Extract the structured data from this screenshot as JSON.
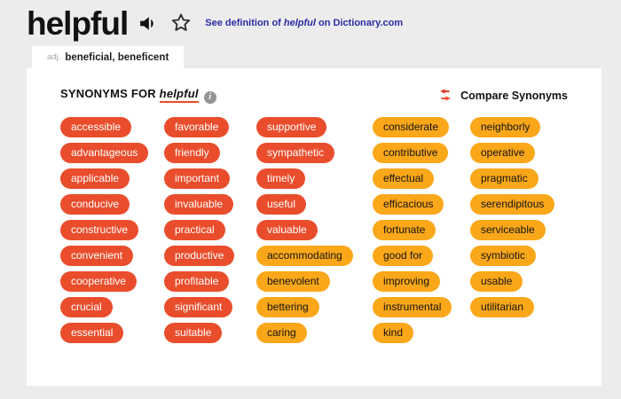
{
  "colors": {
    "strong_pill": "#E94D2C",
    "weak_pill": "#FAA71A",
    "link_blue": "#2B2BA6",
    "page_bg": "#ECECEC",
    "panel_bg": "#FFFFFF"
  },
  "icons": {
    "audio": "speaker-icon",
    "favorite": "star-icon",
    "info": "info-icon",
    "compare": "swap-arrows-icon"
  },
  "header": {
    "title": "helpful",
    "link": {
      "prefix": "See definition of ",
      "word": "helpful",
      "suffix": " on Dictionary.com"
    }
  },
  "tab": {
    "part_of_speech": "adj.",
    "label": "beneficial, beneficent"
  },
  "synonyms_section": {
    "heading_prefix": "SYNONYMS FOR ",
    "heading_word": "helpful",
    "info_glyph": "i",
    "compare_label": "Compare Synonyms"
  },
  "synonyms": {
    "columns": [
      {
        "items": [
          {
            "label": "accessible",
            "tone": "strong"
          },
          {
            "label": "advantageous",
            "tone": "strong"
          },
          {
            "label": "applicable",
            "tone": "strong"
          },
          {
            "label": "conducive",
            "tone": "strong"
          },
          {
            "label": "constructive",
            "tone": "strong"
          },
          {
            "label": "convenient",
            "tone": "strong"
          },
          {
            "label": "cooperative",
            "tone": "strong"
          },
          {
            "label": "crucial",
            "tone": "strong"
          },
          {
            "label": "essential",
            "tone": "strong"
          }
        ]
      },
      {
        "items": [
          {
            "label": "favorable",
            "tone": "strong"
          },
          {
            "label": "friendly",
            "tone": "strong"
          },
          {
            "label": "important",
            "tone": "strong"
          },
          {
            "label": "invaluable",
            "tone": "strong"
          },
          {
            "label": "practical",
            "tone": "strong"
          },
          {
            "label": "productive",
            "tone": "strong"
          },
          {
            "label": "profitable",
            "tone": "strong"
          },
          {
            "label": "significant",
            "tone": "strong"
          },
          {
            "label": "suitable",
            "tone": "strong"
          }
        ]
      },
      {
        "items": [
          {
            "label": "supportive",
            "tone": "strong"
          },
          {
            "label": "sympathetic",
            "tone": "strong"
          },
          {
            "label": "timely",
            "tone": "strong"
          },
          {
            "label": "useful",
            "tone": "strong"
          },
          {
            "label": "valuable",
            "tone": "strong"
          },
          {
            "label": "accommodating",
            "tone": "weak"
          },
          {
            "label": "benevolent",
            "tone": "weak"
          },
          {
            "label": "bettering",
            "tone": "weak"
          },
          {
            "label": "caring",
            "tone": "weak"
          }
        ]
      },
      {
        "items": [
          {
            "label": "considerate",
            "tone": "weak"
          },
          {
            "label": "contributive",
            "tone": "weak"
          },
          {
            "label": "effectual",
            "tone": "weak"
          },
          {
            "label": "efficacious",
            "tone": "weak"
          },
          {
            "label": "fortunate",
            "tone": "weak"
          },
          {
            "label": "good for",
            "tone": "weak"
          },
          {
            "label": "improving",
            "tone": "weak"
          },
          {
            "label": "instrumental",
            "tone": "weak"
          },
          {
            "label": "kind",
            "tone": "weak"
          }
        ]
      },
      {
        "items": [
          {
            "label": "neighborly",
            "tone": "weak"
          },
          {
            "label": "operative",
            "tone": "weak"
          },
          {
            "label": "pragmatic",
            "tone": "weak"
          },
          {
            "label": "serendipitous",
            "tone": "weak"
          },
          {
            "label": "serviceable",
            "tone": "weak"
          },
          {
            "label": "symbiotic",
            "tone": "weak"
          },
          {
            "label": "usable",
            "tone": "weak"
          },
          {
            "label": "utilitarian",
            "tone": "weak"
          }
        ]
      }
    ]
  }
}
